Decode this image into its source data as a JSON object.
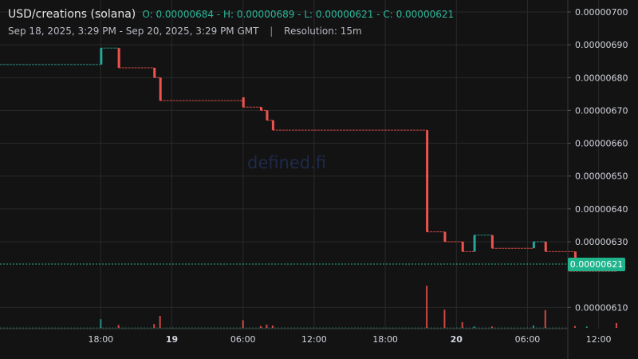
{
  "header": {
    "symbol": "USD/creations (solana)",
    "ohlc_text": "O: 0.00000684 - H: 0.00000689 - L: 0.00000621 - C: 0.00000621",
    "range": "Sep 18, 2025, 3:29 PM - Sep 20, 2025, 3:29 PM GMT",
    "separator": "|",
    "resolution": "Resolution: 15m"
  },
  "watermark": "defined.fi",
  "current_price_label": "0.00000621",
  "colors": {
    "background": "#131313",
    "up": "#26a69a",
    "down": "#ef5350",
    "grid": "#2a2a2a",
    "price_line": "#1fb48c",
    "axis_text": "#d1d4dc"
  },
  "chart_data": {
    "type": "candlestick",
    "x_axis_ticks": [
      "18:00",
      "19",
      "06:00",
      "12:00",
      "18:00",
      "20",
      "06:00",
      "12:00"
    ],
    "y_axis_ticks": [
      "0.00000700",
      "0.00000690",
      "0.00000680",
      "0.00000670",
      "0.00000660",
      "0.00000650",
      "0.00000640",
      "0.00000630",
      "0.00000610"
    ],
    "ylim": [
      6.035e-06,
      7e-06
    ],
    "current_price": 6.21e-06,
    "time_range_hours": [
      -8.5,
      39.4
    ],
    "candles": [
      {
        "t": 0.0,
        "o": 6.84e-06,
        "c": 6.89e-06
      },
      {
        "t": 1.5,
        "o": 6.89e-06,
        "c": 6.83e-06
      },
      {
        "t": 4.5,
        "o": 6.83e-06,
        "c": 6.8e-06
      },
      {
        "t": 5.0,
        "o": 6.8e-06,
        "c": 6.73e-06
      },
      {
        "t": 12.0,
        "o": 6.74e-06,
        "c": 6.71e-06
      },
      {
        "t": 13.5,
        "o": 6.71e-06,
        "c": 6.7e-06
      },
      {
        "t": 14.0,
        "o": 6.7e-06,
        "c": 6.67e-06
      },
      {
        "t": 14.5,
        "o": 6.67e-06,
        "c": 6.64e-06
      },
      {
        "t": 27.5,
        "o": 6.64e-06,
        "c": 6.33e-06
      },
      {
        "t": 29.0,
        "o": 6.33e-06,
        "c": 6.3e-06
      },
      {
        "t": 30.5,
        "o": 6.3e-06,
        "c": 6.27e-06
      },
      {
        "t": 31.5,
        "o": 6.27e-06,
        "c": 6.32e-06
      },
      {
        "t": 33.0,
        "o": 6.32e-06,
        "c": 6.28e-06
      },
      {
        "t": 36.5,
        "o": 6.28e-06,
        "c": 6.3e-06
      },
      {
        "t": 37.5,
        "o": 6.3e-06,
        "c": 6.27e-06
      },
      {
        "t": 40.0,
        "o": 6.27e-06,
        "c": 6.22e-06
      },
      {
        "t": 41.0,
        "o": 6.22e-06,
        "c": 6.23e-06
      },
      {
        "t": 43.5,
        "o": 6.23e-06,
        "c": 6.21e-06
      }
    ],
    "volumes": [
      {
        "t": 0.0,
        "v": 0.18,
        "dir": "up"
      },
      {
        "t": 1.5,
        "v": 0.06,
        "dir": "down"
      },
      {
        "t": 4.5,
        "v": 0.08,
        "dir": "down"
      },
      {
        "t": 5.0,
        "v": 0.25,
        "dir": "down"
      },
      {
        "t": 12.0,
        "v": 0.16,
        "dir": "down"
      },
      {
        "t": 13.5,
        "v": 0.04,
        "dir": "down"
      },
      {
        "t": 14.0,
        "v": 0.07,
        "dir": "down"
      },
      {
        "t": 14.5,
        "v": 0.05,
        "dir": "down"
      },
      {
        "t": 27.5,
        "v": 0.88,
        "dir": "down"
      },
      {
        "t": 29.0,
        "v": 0.38,
        "dir": "down"
      },
      {
        "t": 30.5,
        "v": 0.12,
        "dir": "down"
      },
      {
        "t": 31.5,
        "v": 0.03,
        "dir": "up"
      },
      {
        "t": 33.0,
        "v": 0.03,
        "dir": "down"
      },
      {
        "t": 36.5,
        "v": 0.05,
        "dir": "up"
      },
      {
        "t": 37.5,
        "v": 0.37,
        "dir": "down"
      },
      {
        "t": 40.0,
        "v": 0.04,
        "dir": "down"
      },
      {
        "t": 41.0,
        "v": 0.03,
        "dir": "up"
      },
      {
        "t": 43.5,
        "v": 0.1,
        "dir": "down"
      }
    ]
  }
}
